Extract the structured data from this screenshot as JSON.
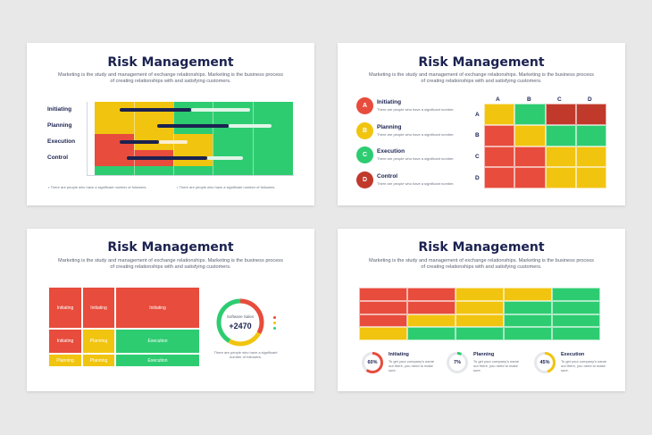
{
  "common": {
    "title": "Risk Management",
    "subtitle": "Marketing is the study and management of exchange relationships. Marketing is the business process of creating relationships with and satisfying customers."
  },
  "slide1": {
    "rows": [
      "Initiating",
      "Planning",
      "Execution",
      "Control"
    ],
    "note_left": "There are people who have a significant number of followers.",
    "note_right": "There are people who have a significant number of followers."
  },
  "slide2": {
    "items": [
      {
        "letter": "A",
        "label": "Initiating",
        "desc": "There are people who have a significant number."
      },
      {
        "letter": "B",
        "label": "Planning",
        "desc": "There are people who have a significant number."
      },
      {
        "letter": "C",
        "label": "Execution",
        "desc": "There are people who have a significant number."
      },
      {
        "letter": "D",
        "label": "Control",
        "desc": "There are people who have a significant number."
      }
    ],
    "col_headers": [
      "A",
      "B",
      "C",
      "D"
    ],
    "row_headers": [
      "A",
      "B",
      "C",
      "D"
    ]
  },
  "slide3": {
    "grid_labels": {
      "r1c1": "Initiating",
      "r1c2": "Initiating",
      "r1c3": "Initiating",
      "r2c1": "Initiating",
      "r2c2": "Planning",
      "r2c3": "Execution",
      "r3c1": "Planning",
      "r3c2": "Planning",
      "r3c3": "Execution"
    },
    "donut_label": "Software Sales",
    "donut_value": "+2470",
    "note": "There are people who have a significant number of followers."
  },
  "slide4": {
    "stats": [
      {
        "pct": "60%",
        "label": "Initiating",
        "desc": "To get your company's name out there, you need to make sure."
      },
      {
        "pct": "7%",
        "label": "Planning",
        "desc": "To get your company's name out there, you need to make sure."
      },
      {
        "pct": "45%",
        "label": "Execution",
        "desc": "To get your company's name out there, you need to make sure."
      }
    ]
  },
  "colors": {
    "red": "#e74c3c",
    "yellow": "#f1c40f",
    "green": "#2ecc71",
    "dark_red": "#c0392b",
    "navy": "#1b2250"
  }
}
